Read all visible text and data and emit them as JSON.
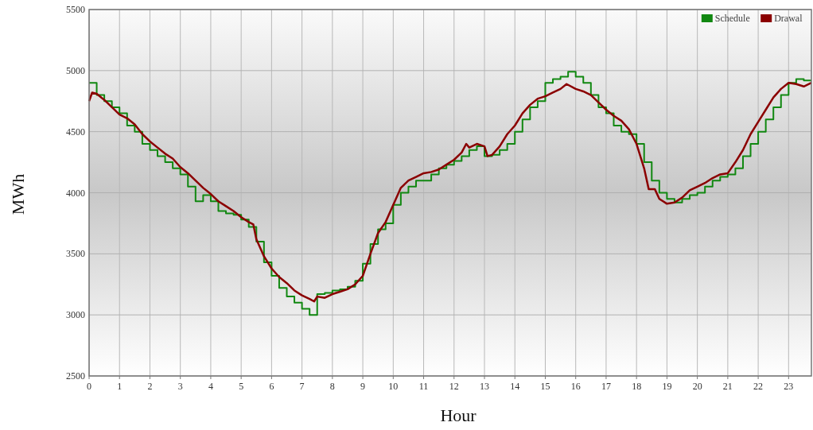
{
  "chart_data": {
    "type": "line",
    "xlabel": "Hour",
    "ylabel": "MWh",
    "xlim": [
      0,
      23.75
    ],
    "xticks": [
      0,
      1,
      2,
      3,
      4,
      5,
      6,
      7,
      8,
      9,
      10,
      11,
      12,
      13,
      14,
      15,
      16,
      17,
      18,
      19,
      20,
      21,
      22,
      23
    ],
    "ylim": [
      2500,
      5500
    ],
    "yticks": [
      2500,
      3000,
      3500,
      4000,
      4500,
      5000,
      5500
    ],
    "grid": true,
    "legend": "top right",
    "marker": "none",
    "line_style": "solid",
    "series": [
      {
        "name": "Schedule",
        "color": "#118811",
        "type": "step",
        "x": [
          0,
          0.25,
          0.5,
          0.75,
          1,
          1.25,
          1.5,
          1.75,
          2,
          2.25,
          2.5,
          2.75,
          3,
          3.25,
          3.5,
          3.75,
          4,
          4.25,
          4.5,
          4.75,
          5,
          5.25,
          5.5,
          5.75,
          6,
          6.25,
          6.5,
          6.75,
          7,
          7.25,
          7.5,
          7.75,
          8,
          8.25,
          8.5,
          8.75,
          9,
          9.25,
          9.5,
          9.75,
          10,
          10.25,
          10.5,
          10.75,
          11,
          11.25,
          11.5,
          11.75,
          12,
          12.25,
          12.5,
          12.75,
          13,
          13.25,
          13.5,
          13.75,
          14,
          14.25,
          14.5,
          14.75,
          15,
          15.25,
          15.5,
          15.75,
          16,
          16.25,
          16.5,
          16.75,
          17,
          17.25,
          17.5,
          17.75,
          18,
          18.25,
          18.5,
          18.75,
          19,
          19.25,
          19.5,
          19.75,
          20,
          20.25,
          20.5,
          20.75,
          21,
          21.25,
          21.5,
          21.75,
          22,
          22.25,
          22.5,
          22.75,
          23,
          23.25,
          23.5,
          23.75
        ],
        "values": [
          4900,
          4800,
          4750,
          4700,
          4650,
          4550,
          4500,
          4400,
          4350,
          4300,
          4250,
          4200,
          4150,
          4050,
          3930,
          3980,
          3930,
          3850,
          3830,
          3820,
          3780,
          3720,
          3600,
          3430,
          3320,
          3220,
          3150,
          3100,
          3050,
          3000,
          3170,
          3180,
          3200,
          3210,
          3230,
          3280,
          3420,
          3580,
          3700,
          3750,
          3900,
          4000,
          4050,
          4100,
          4100,
          4150,
          4200,
          4230,
          4260,
          4300,
          4350,
          4380,
          4300,
          4310,
          4350,
          4400,
          4500,
          4600,
          4700,
          4750,
          4900,
          4930,
          4950,
          4990,
          4950,
          4900,
          4800,
          4700,
          4650,
          4550,
          4500,
          4480,
          4400,
          4250,
          4100,
          4000,
          3950,
          3920,
          3950,
          3980,
          4000,
          4050,
          4100,
          4130,
          4150,
          4200,
          4300,
          4400,
          4500,
          4600,
          4700,
          4800,
          4900,
          4930,
          4920,
          4920
        ]
      },
      {
        "name": "Drawal",
        "color": "#8b0000",
        "type": "line",
        "x": [
          0,
          0.1,
          0.25,
          0.5,
          0.75,
          1,
          1.25,
          1.5,
          1.75,
          2,
          2.25,
          2.5,
          2.75,
          3,
          3.25,
          3.5,
          3.75,
          4,
          4.25,
          4.5,
          4.75,
          5,
          5.25,
          5.4,
          5.5,
          5.75,
          6,
          6.25,
          6.5,
          6.75,
          7,
          7.25,
          7.4,
          7.5,
          7.75,
          8,
          8.25,
          8.5,
          8.75,
          9,
          9.25,
          9.5,
          9.75,
          10,
          10.25,
          10.5,
          10.75,
          11,
          11.25,
          11.5,
          11.75,
          12,
          12.25,
          12.4,
          12.5,
          12.75,
          13,
          13.1,
          13.25,
          13.5,
          13.75,
          14,
          14.25,
          14.5,
          14.75,
          15,
          15.25,
          15.5,
          15.7,
          16,
          16.25,
          16.5,
          16.75,
          17,
          17.25,
          17.5,
          17.75,
          18,
          18.25,
          18.4,
          18.6,
          18.75,
          19,
          19.25,
          19.5,
          19.75,
          20,
          20.25,
          20.5,
          20.75,
          21,
          21.25,
          21.5,
          21.75,
          22,
          22.25,
          22.5,
          22.75,
          23,
          23.25,
          23.5,
          23.75
        ],
        "values": [
          4750,
          4820,
          4810,
          4760,
          4700,
          4640,
          4610,
          4560,
          4480,
          4420,
          4370,
          4320,
          4280,
          4210,
          4160,
          4100,
          4040,
          3990,
          3930,
          3890,
          3850,
          3800,
          3760,
          3740,
          3620,
          3480,
          3380,
          3310,
          3260,
          3200,
          3160,
          3130,
          3110,
          3150,
          3140,
          3170,
          3190,
          3210,
          3250,
          3320,
          3500,
          3670,
          3760,
          3900,
          4040,
          4100,
          4130,
          4160,
          4170,
          4190,
          4230,
          4270,
          4330,
          4400,
          4370,
          4400,
          4380,
          4300,
          4310,
          4380,
          4480,
          4550,
          4650,
          4720,
          4770,
          4790,
          4820,
          4850,
          4890,
          4850,
          4830,
          4800,
          4740,
          4680,
          4630,
          4590,
          4520,
          4400,
          4200,
          4030,
          4030,
          3950,
          3910,
          3920,
          3960,
          4020,
          4050,
          4080,
          4120,
          4150,
          4160,
          4250,
          4350,
          4480,
          4580,
          4680,
          4780,
          4850,
          4900,
          4890,
          4870,
          4900
        ]
      }
    ]
  }
}
